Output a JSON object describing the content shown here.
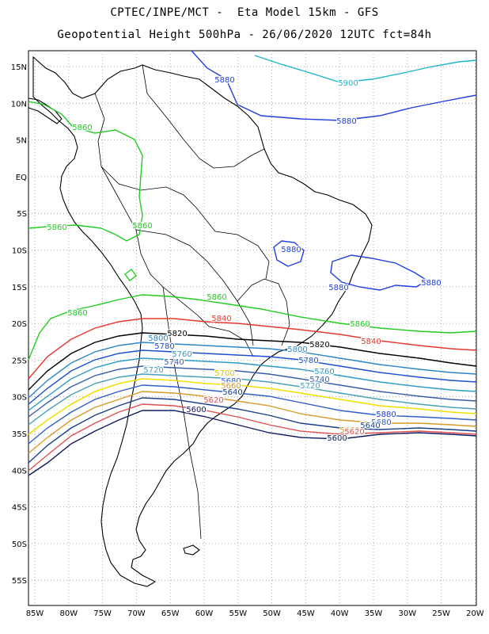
{
  "header": {
    "line1": "CPTEC/INPE/MCT -  Eta Model 15km - GFS",
    "line2": "Geopotential Height 500hPa - 26/06/2020 12UTC fct=84h"
  },
  "axes": {
    "lat_labels": [
      "15N",
      "10N",
      "5N",
      "EQ",
      "5S",
      "10S",
      "15S",
      "20S",
      "25S",
      "30S",
      "35S",
      "40S",
      "45S",
      "50S",
      "55S"
    ],
    "lon_labels": [
      "85W",
      "80W",
      "75W",
      "70W",
      "65W",
      "60W",
      "55W",
      "50W",
      "45W",
      "40W",
      "35W",
      "30W",
      "25W",
      "20W"
    ]
  },
  "chart_data": {
    "type": "contour-map",
    "variable": "Geopotential Height 500hPa",
    "contours": [
      {
        "value": 5900,
        "color": "#1fb5c9",
        "labels": [
          "5900"
        ]
      },
      {
        "value": 5880,
        "color": "#1f3fe0",
        "labels": [
          "5880",
          "5880",
          "5880",
          "5880",
          "5880",
          "5880"
        ]
      },
      {
        "value": 5860,
        "color": "#22cc22",
        "labels": [
          "5860",
          "5860",
          "5860",
          "5860",
          "5860",
          "5860"
        ]
      },
      {
        "value": 5840,
        "color": "#e8382e",
        "labels": [
          "5840",
          "5840"
        ]
      },
      {
        "value": 5820,
        "color": "#000000",
        "labels": [
          "5820",
          "5820"
        ]
      },
      {
        "value": 5800,
        "color": "#2d86c8",
        "labels": [
          "5800",
          "5800"
        ]
      },
      {
        "value": 5780,
        "color": "#1a50d0",
        "labels": [
          "5780",
          "5780"
        ]
      },
      {
        "value": 5760,
        "color": "#2f9bc9",
        "labels": [
          "5760",
          "5760"
        ]
      },
      {
        "value": 5740,
        "color": "#3a5da8",
        "labels": [
          "5740",
          "5740"
        ]
      },
      {
        "value": 5720,
        "color": "#4aa0b8",
        "labels": [
          "5720",
          "5720"
        ]
      },
      {
        "value": 5700,
        "color": "#f0e000",
        "labels": [
          "5700"
        ]
      },
      {
        "value": 5680,
        "color": "#2f5fc8",
        "labels": [
          "5680",
          "5680"
        ]
      },
      {
        "value": 5660,
        "color": "#d99a2a",
        "labels": [
          "5660",
          "5660"
        ]
      },
      {
        "value": 5640,
        "color": "#1a3f8a",
        "labels": [
          "5640",
          "5640"
        ]
      },
      {
        "value": 5620,
        "color": "#e05050",
        "labels": [
          "5620",
          "5620"
        ]
      },
      {
        "value": 5600,
        "color": "#101c60",
        "labels": [
          "5600",
          "5600"
        ]
      }
    ],
    "lon_range": [
      "85W",
      "20W"
    ],
    "lat_range": [
      "15N",
      "55S"
    ],
    "grid": "on (dotted)"
  }
}
